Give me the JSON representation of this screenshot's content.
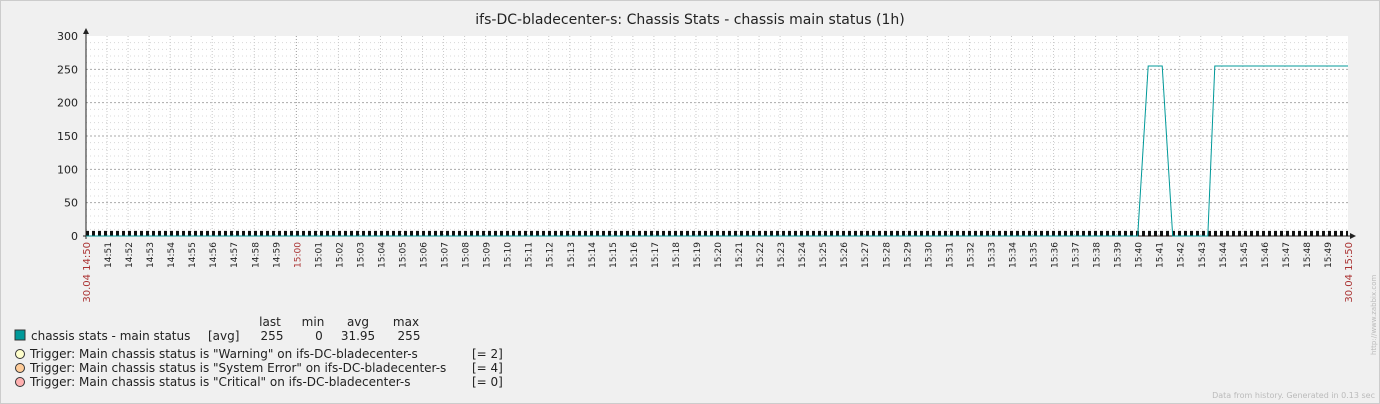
{
  "chart_data": {
    "type": "line",
    "title": "ifs-DC-bladecenter-s: Chassis Stats - chassis main status (1h)",
    "ylim": [
      0,
      300
    ],
    "y_ticks": [
      0,
      50,
      100,
      150,
      200,
      250,
      300
    ],
    "x_ticks": [
      "14:51",
      "14:52",
      "14:53",
      "14:54",
      "14:55",
      "14:56",
      "14:57",
      "14:58",
      "14:59",
      "15:00",
      "15:01",
      "15:02",
      "15:03",
      "15:04",
      "15:05",
      "15:06",
      "15:07",
      "15:08",
      "15:09",
      "15:10",
      "15:11",
      "15:12",
      "15:13",
      "15:14",
      "15:15",
      "15:16",
      "15:17",
      "15:18",
      "15:19",
      "15:20",
      "15:21",
      "15:22",
      "15:23",
      "15:24",
      "15:25",
      "15:26",
      "15:27",
      "15:28",
      "15:29",
      "15:30",
      "15:31",
      "15:32",
      "15:33",
      "15:34",
      "15:35",
      "15:36",
      "15:37",
      "15:38",
      "15:39",
      "15:40",
      "15:41",
      "15:42",
      "15:43",
      "15:44",
      "15:45",
      "15:46",
      "15:47",
      "15:48",
      "15:49"
    ],
    "x_start_label": "30.04 14:50",
    "x_end_label": "30.04 15:50",
    "grid": true,
    "series": [
      {
        "name": "chassis stats - main status",
        "color": "#009999",
        "x": [
          "14:50",
          "15:40",
          "15:40:30",
          "15:41:10",
          "15:41:40",
          "15:43:20",
          "15:43:40",
          "15:50"
        ],
        "y": [
          0,
          0,
          255,
          255,
          0,
          0,
          255,
          255
        ]
      }
    ],
    "triggers": [
      {
        "label": "Trigger: Main chassis status is \"Warning\" on ifs-DC-bladecenter-s",
        "value": "[= 2]",
        "color": "#ffffcc",
        "y": 2
      },
      {
        "label": "Trigger: Main chassis status is \"System Error\" on ifs-DC-bladecenter-s",
        "value": "[= 4]",
        "color": "#ffcc99",
        "y": 4
      },
      {
        "label": "Trigger: Main chassis status is \"Critical\" on ifs-DC-bladecenter-s",
        "value": "[= 0]",
        "color": "#ffb0b0",
        "y": 0
      }
    ]
  },
  "legend": {
    "headers": [
      "last",
      "min",
      "avg",
      "max"
    ],
    "item": {
      "name": "chassis stats - main status",
      "func": "[avg]",
      "last": "255",
      "min": "0",
      "avg": "31.95",
      "max": "255"
    }
  },
  "footer": "Data from history. Generated in 0.13 sec",
  "watermark": "http://www.zabbix.com"
}
